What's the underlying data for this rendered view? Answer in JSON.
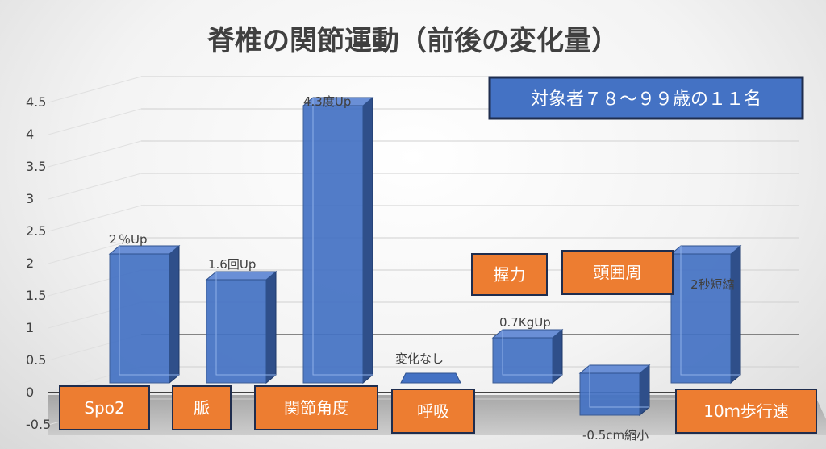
{
  "chart_data": {
    "type": "bar",
    "title": "脊椎の関節運動（前後の変化量）",
    "categories": [
      "Spo2",
      "脈",
      "関節角度",
      "呼吸",
      "握力",
      "頭囲周",
      "10ｍ歩行速"
    ],
    "values": [
      2,
      1.6,
      4.3,
      0,
      0.7,
      -0.5,
      2
    ],
    "data_labels": [
      "２％Up",
      "1.6回Up",
      "4.3度Up",
      "変化なし",
      "0.7KgUp",
      "-0.5cm縮小",
      "2秒短縮"
    ],
    "y_ticks": [
      "4.5",
      "4",
      "3.5",
      "3",
      "2.5",
      "2",
      "1.5",
      "1",
      "0.5",
      "0",
      "-0.5"
    ],
    "ylim": [
      -0.5,
      4.5
    ],
    "grid": true,
    "bar_color": "#4472c4",
    "label_box_color": "#ed7d31",
    "annotation": "対象者７８～９９歳の１１名"
  }
}
